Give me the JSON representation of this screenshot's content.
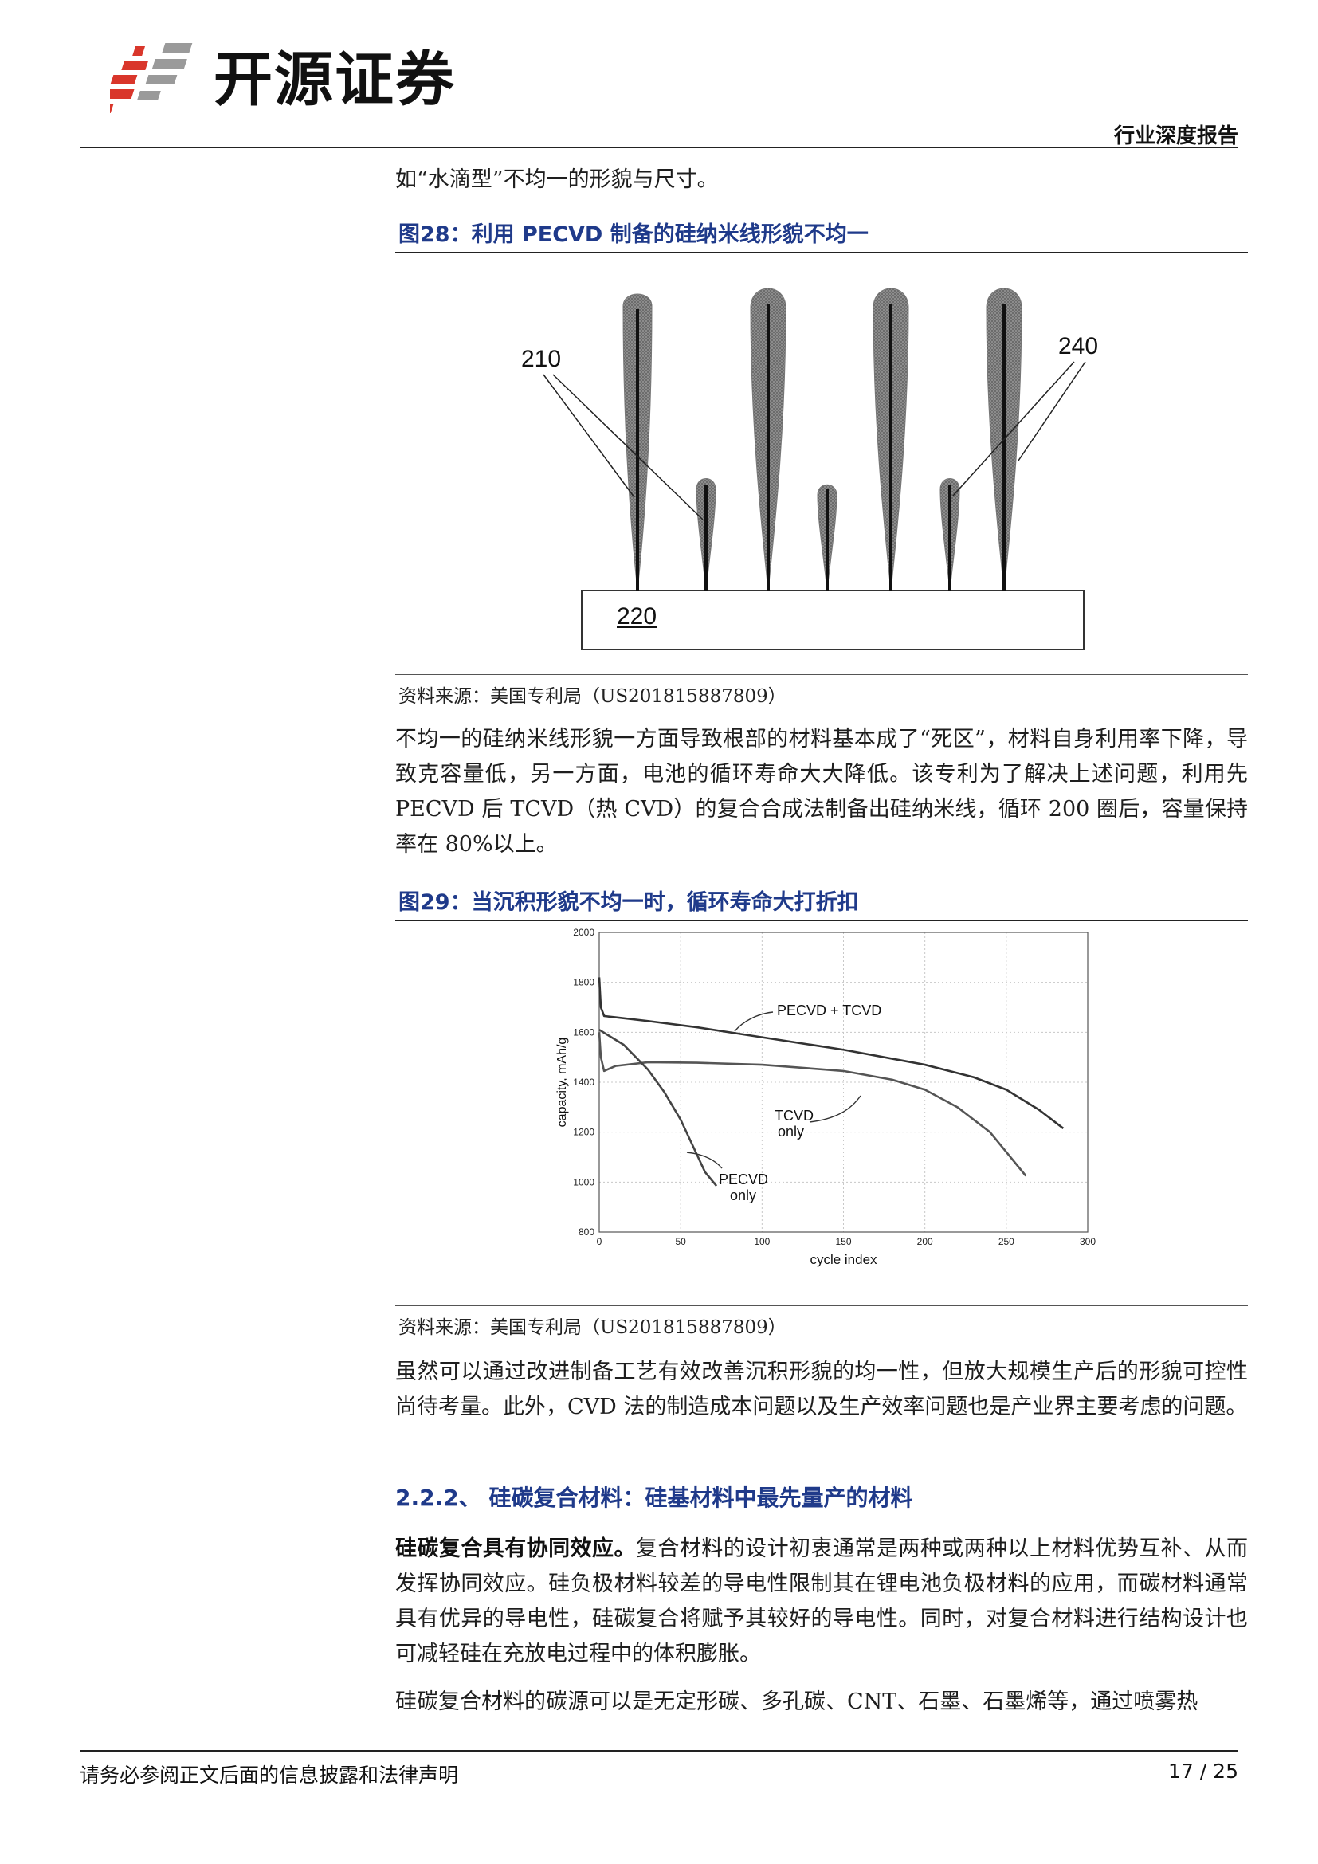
{
  "header": {
    "company": "开源证券",
    "report_type": "行业深度报告"
  },
  "intro_line": "如“水滴型”不均一的形貌与尺寸。",
  "figure28": {
    "title": "图28：利用 PECVD 制备的硅纳米线形貌不均一",
    "labels": {
      "a": "210",
      "b": "240",
      "c": "220"
    },
    "source": "资料来源：美国专利局（US201815887809）"
  },
  "para1": "不均一的硅纳米线形貌一方面导致根部的材料基本成了“死区”，材料自身利用率下降，导致克容量低，另一方面，电池的循环寿命大大降低。该专利为了解决上述问题，利用先 PECVD 后 TCVD（热 CVD）的复合合成法制备出硅纳米线，循环 200 圈后，容量保持率在 80%以上。",
  "figure29": {
    "title": "图29：当沉积形貌不均一时，循环寿命大打折扣",
    "source": "资料来源：美国专利局（US201815887809）"
  },
  "chart_data": {
    "type": "line",
    "xlabel": "cycle index",
    "ylabel": "capacity, mAh/g",
    "xlim": [
      0,
      300
    ],
    "ylim": [
      800,
      2000
    ],
    "xticks": [
      "0",
      "50",
      "100",
      "150",
      "200",
      "250",
      "300"
    ],
    "yticks": [
      "800",
      "1000",
      "1200",
      "1400",
      "1600",
      "1800",
      "2000"
    ],
    "grid": true,
    "series": [
      {
        "name": "PECVD + TCVD",
        "color": "#333333",
        "x": [
          0,
          1,
          3,
          10,
          30,
          60,
          100,
          150,
          200,
          230,
          250,
          270,
          285
        ],
        "y": [
          1820,
          1700,
          1665,
          1660,
          1645,
          1620,
          1580,
          1530,
          1470,
          1420,
          1370,
          1290,
          1215
        ]
      },
      {
        "name": "TCVD only",
        "color": "#555555",
        "x": [
          0,
          1,
          3,
          10,
          30,
          60,
          100,
          150,
          180,
          200,
          220,
          240,
          262
        ],
        "y": [
          1600,
          1500,
          1445,
          1465,
          1480,
          1478,
          1470,
          1445,
          1410,
          1370,
          1300,
          1200,
          1025
        ]
      },
      {
        "name": "PECVD only",
        "color": "#444444",
        "x": [
          0,
          5,
          15,
          30,
          40,
          50,
          60,
          65,
          72
        ],
        "y": [
          1610,
          1590,
          1550,
          1450,
          1360,
          1250,
          1110,
          1040,
          985
        ]
      }
    ],
    "annotations": [
      "PECVD + TCVD",
      "TCVD",
      "only",
      "PECVD",
      "only"
    ]
  },
  "para2": "虽然可以通过改进制备工艺有效改善沉积形貌的均一性，但放大规模生产后的形貌可控性尚待考量。此外，CVD 法的制造成本问题以及生产效率问题也是产业界主要考虑的问题。",
  "section": "2.2.2、 硅碳复合材料：硅基材料中最先量产的材料",
  "para3_bold": "硅碳复合具有协同效应。",
  "para3_rest": "复合材料的设计初衷通常是两种或两种以上材料优势互补、从而发挥协同效应。硅负极材料较差的导电性限制其在锂电池负极材料的应用，而碳材料通常具有优异的导电性，硅碳复合将赋予其较好的导电性。同时，对复合材料进行结构设计也可减轻硅在充放电过程中的体积膨胀。",
  "para4": "硅碳复合材料的碳源可以是无定形碳、多孔碳、CNT、石墨、石墨烯等，通过喷雾热",
  "footer": {
    "note": "请务必参阅正文后面的信息披露和法律声明",
    "page": "17 / 25"
  },
  "colors": {
    "accent": "#1f3a8a",
    "logo_red": "#d9362b",
    "logo_gray": "#9a9a9a"
  }
}
